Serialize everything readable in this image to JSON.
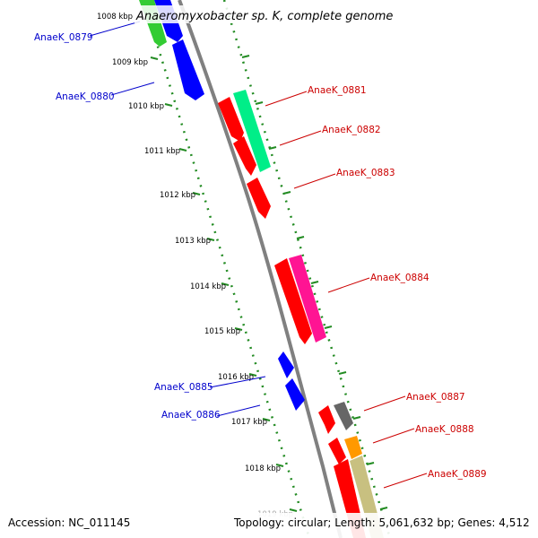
{
  "title": "Anaeromyxobacter sp. K, complete genome",
  "footer": {
    "accession": "Accession: NC_011145",
    "summary": "Topology: circular; Length: 5,061,632 bp; Genes: 4,512"
  },
  "axis_labels": [
    "1008 kbp",
    "1009 kbp",
    "1010 kbp",
    "1011 kbp",
    "1012 kbp",
    "1013 kbp",
    "1014 kbp",
    "1015 kbp",
    "1016 kbp",
    "1017 kbp",
    "1018 kbp",
    "1019 kbp"
  ],
  "genes": [
    {
      "id": "AnaeK_0879",
      "color": "#0000cc"
    },
    {
      "id": "AnaeK_0880",
      "color": "#0000cc"
    },
    {
      "id": "AnaeK_0881",
      "color": "#cc0000"
    },
    {
      "id": "AnaeK_0882",
      "color": "#cc0000"
    },
    {
      "id": "AnaeK_0883",
      "color": "#cc0000"
    },
    {
      "id": "AnaeK_0884",
      "color": "#cc0000"
    },
    {
      "id": "AnaeK_0885",
      "color": "#0000cc"
    },
    {
      "id": "AnaeK_0886",
      "color": "#0000cc"
    },
    {
      "id": "AnaeK_0887",
      "color": "#cc0000"
    },
    {
      "id": "AnaeK_0888",
      "color": "#cc0000"
    },
    {
      "id": "AnaeK_0889",
      "color": "#cc0000"
    }
  ],
  "colors": {
    "backbone": "#808080",
    "tick_ring": "#228b22",
    "gene_red": "#ff0000",
    "gene_blue": "#0000ff",
    "gene_green": "#33cc33",
    "gene_teal": "#00ee88",
    "gene_pink": "#ff1493",
    "gene_gray": "#666666",
    "gene_orange": "#ff9900",
    "gene_khaki": "#c8c080"
  }
}
